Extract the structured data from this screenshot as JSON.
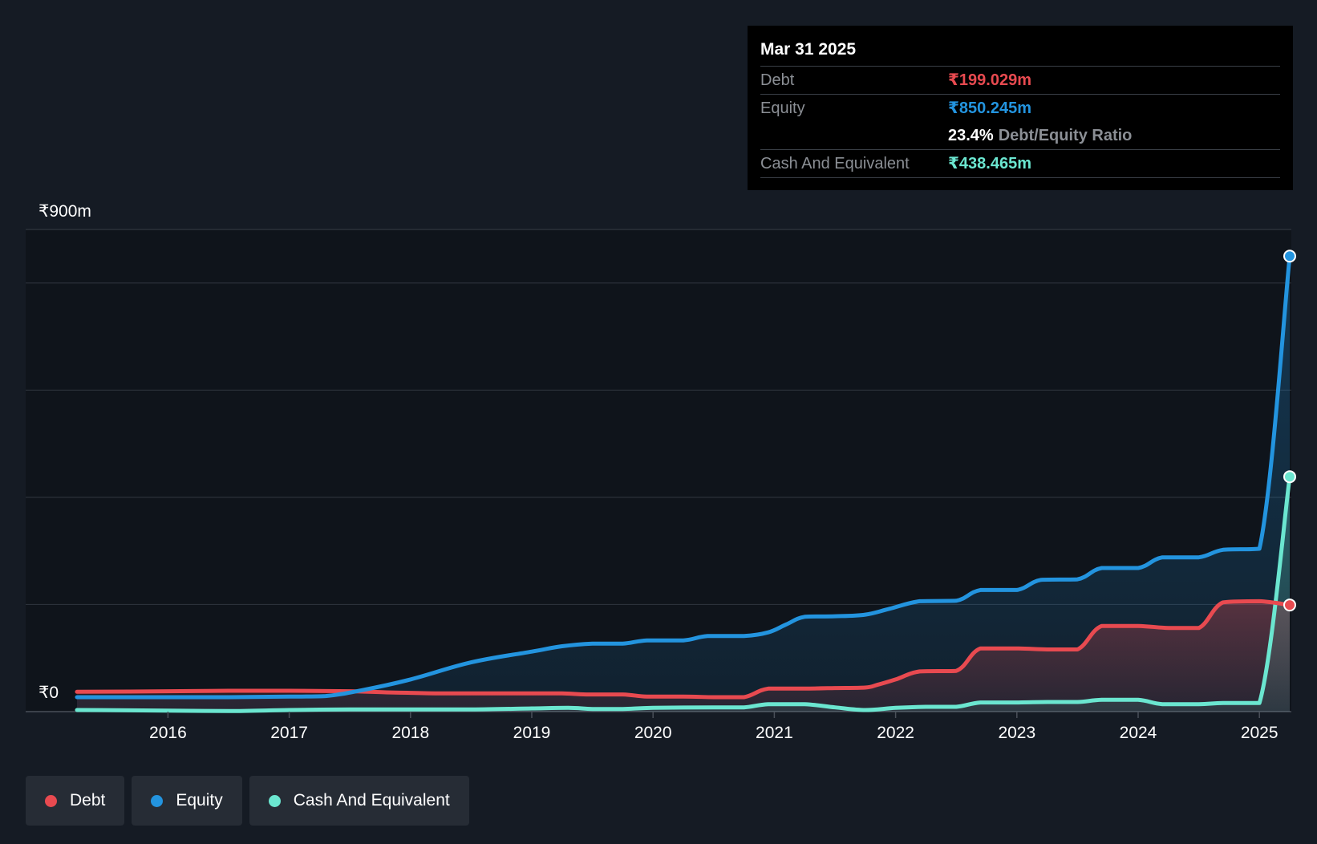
{
  "tooltip": {
    "date": "Mar 31 2025",
    "debt_label": "Debt",
    "debt_value": "₹199.029m",
    "equity_label": "Equity",
    "equity_value": "₹850.245m",
    "ratio_value": "23.4%",
    "ratio_label": "Debt/Equity Ratio",
    "cash_label": "Cash And Equivalent",
    "cash_value": "₹438.465m"
  },
  "legend": {
    "debt": "Debt",
    "equity": "Equity",
    "cash": "Cash And Equivalent"
  },
  "colors": {
    "debt": "#e84a50",
    "equity": "#2394df",
    "cash": "#6be6d0",
    "background": "#151b24",
    "plot_background": "#0f141b"
  },
  "chart_data": {
    "type": "area",
    "title": "",
    "xlabel": "",
    "ylabel": "",
    "y_tick_labels": [
      "₹0",
      "₹900m"
    ],
    "ylim": [
      0,
      900
    ],
    "xlim": [
      2015.25,
      2025.25
    ],
    "x_ticks": [
      2016,
      2017,
      2018,
      2019,
      2020,
      2021,
      2022,
      2023,
      2024,
      2025
    ],
    "gridlines": [
      0,
      200,
      400,
      600,
      800,
      900
    ],
    "series": [
      {
        "name": "Debt",
        "key": "debt",
        "x": [
          2015.25,
          2016.0,
          2016.5,
          2017.0,
          2017.5,
          2017.8,
          2018.0,
          2018.25,
          2018.5,
          2019.0,
          2019.25,
          2019.45,
          2019.75,
          2019.95,
          2020.25,
          2020.5,
          2020.75,
          2020.95,
          2021.25,
          2021.5,
          2021.75,
          2021.85,
          2022.0,
          2022.2,
          2022.5,
          2022.7,
          2023.0,
          2023.25,
          2023.5,
          2023.7,
          2024.0,
          2024.25,
          2024.5,
          2024.7,
          2025.0,
          2025.25
        ],
        "values": [
          37,
          38,
          39,
          39,
          38,
          36,
          35,
          34,
          34,
          34,
          34,
          32,
          32,
          28,
          28,
          27,
          27,
          43,
          43,
          44,
          45,
          50,
          60,
          75,
          76,
          118,
          118,
          116,
          116,
          160,
          160,
          156,
          156,
          204,
          206,
          199.029
        ]
      },
      {
        "name": "Equity",
        "key": "equity",
        "x": [
          2015.25,
          2016.0,
          2016.5,
          2017.0,
          2017.3,
          2017.6,
          2018.0,
          2018.5,
          2019.0,
          2019.25,
          2019.5,
          2019.75,
          2019.95,
          2020.25,
          2020.45,
          2020.75,
          2020.95,
          2021.1,
          2021.25,
          2021.5,
          2021.75,
          2021.95,
          2022.2,
          2022.5,
          2022.7,
          2023.0,
          2023.2,
          2023.5,
          2023.7,
          2024.0,
          2024.2,
          2024.5,
          2024.7,
          2025.0,
          2025.25
        ],
        "values": [
          27,
          27,
          27,
          28,
          29,
          40,
          60,
          92,
          112,
          122,
          127,
          127,
          133,
          133,
          141,
          141,
          148,
          163,
          177,
          178,
          181,
          192,
          206,
          207,
          227,
          227,
          246,
          247,
          268,
          268,
          288,
          288,
          302,
          304,
          850.245
        ]
      },
      {
        "name": "Cash And Equivalent",
        "key": "cash",
        "x": [
          2015.25,
          2016.0,
          2016.5,
          2017.0,
          2017.5,
          2018.0,
          2018.5,
          2019.0,
          2019.3,
          2019.5,
          2019.75,
          2020.0,
          2020.5,
          2020.75,
          2020.95,
          2021.25,
          2021.5,
          2021.75,
          2022.0,
          2022.25,
          2022.5,
          2022.7,
          2023.0,
          2023.25,
          2023.5,
          2023.7,
          2024.0,
          2024.2,
          2024.5,
          2024.7,
          2025.0,
          2025.25
        ],
        "values": [
          3,
          2,
          1,
          3,
          4,
          4,
          4,
          6,
          7,
          5,
          5,
          7,
          8,
          8,
          14,
          14,
          8,
          3,
          7,
          9,
          9,
          17,
          17,
          18,
          18,
          22,
          22,
          14,
          14,
          16,
          16,
          438.465
        ]
      }
    ]
  }
}
